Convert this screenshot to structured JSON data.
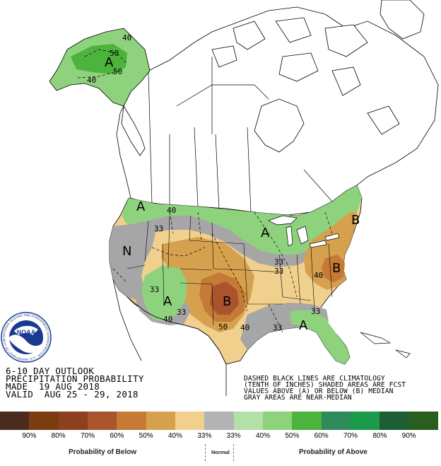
{
  "title_lines": [
    "6-10 DAY OUTLOOK",
    "PRECIPITATION PROBABILITY",
    "MADE  19 AUG 2018",
    "VALID  AUG 25 - 29, 2018"
  ],
  "note_lines": [
    "DASHED BLACK LINES ARE CLIMATOLOGY",
    "(TENTH OF INCHES) SHADED AREAS ARE FCST",
    "VALUES ABOVE (A) OR BELOW (B) MEDIAN",
    "GRAY AREAS ARE NEAR-MEDIAN"
  ],
  "logo": {
    "text": "NOAA",
    "ring_text": "NATIONAL OCEANIC AND ATMOSPHERIC ADMINISTRATION · U.S. DEPARTMENT OF COMMERCE"
  },
  "map_labels": {
    "alaska_a": "A",
    "alaska_40": "40",
    "alaska_50a": "50",
    "alaska_50b": "50",
    "alaska_40b": "40",
    "nw_a": "A",
    "nw_40": "40",
    "nw_33": "33",
    "n_label": "N",
    "gl_a": "A",
    "mw_33a": "33",
    "mw_33b": "33",
    "sw_a": "A",
    "sw_33a": "33",
    "sw_33b": "33",
    "sw_40": "40",
    "sp_b": "B",
    "sp_50": "50",
    "sp_40": "40",
    "east_b": "B",
    "ne_b": "B",
    "east_40": "40",
    "se_a": "A",
    "se_33a": "33",
    "se_33b": "33"
  },
  "legend": {
    "swatches": [
      "#4b2a20",
      "#7b3c10",
      "#8d4020",
      "#a9542c",
      "#c57a35",
      "#d6a14e",
      "#f1d08e",
      "#b3b3b3",
      "#b3e0a6",
      "#8fd27d",
      "#4cb43c",
      "#2e8a5a",
      "#1b9a4a",
      "#1e5e34",
      "#2a5e1c"
    ],
    "tick_labels": [
      "90%",
      "80%",
      "70%",
      "60%",
      "50%",
      "40%",
      "33%",
      "33%",
      "40%",
      "50%",
      "60%",
      "70%",
      "80%",
      "90%"
    ],
    "below_title": "Probability of Below",
    "normal_title": "Normal",
    "above_title": "Probability of Above"
  },
  "colors": {
    "land_green_light": "#8fd27d",
    "land_green_med": "#4cb43c",
    "land_tan_light": "#f1d08e",
    "land_tan_med": "#d6a14e",
    "land_brown": "#c57a35",
    "land_brown_dark": "#a9542c",
    "near_median_gray": "#a6a6a6",
    "noaa_blue": "#1a3a8f"
  }
}
